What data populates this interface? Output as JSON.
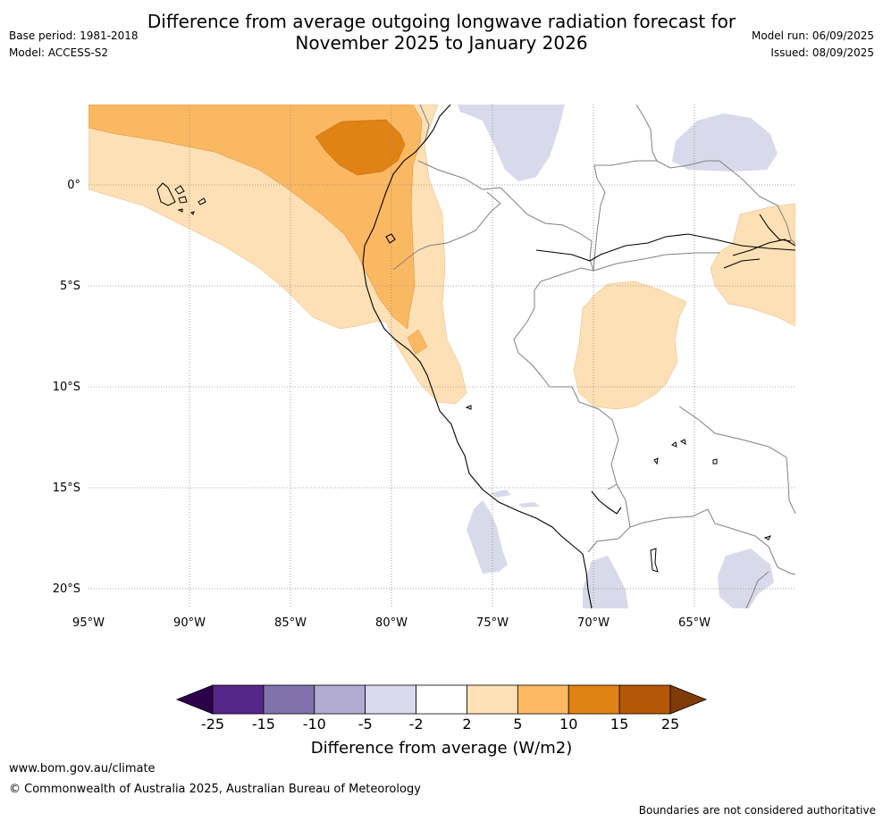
{
  "header": {
    "title_line1": "Difference from average outgoing longwave radiation forecast for",
    "title_line2": "November 2025 to January 2026",
    "base_period": "Base period: 1981-2018",
    "model": "Model: ACCESS-S2",
    "model_run": "Model run: 06/09/2025",
    "issued": "Issued: 08/09/2025"
  },
  "map": {
    "lat_labels": [
      "0°",
      "5°S",
      "10°S",
      "15°S",
      "20°S"
    ],
    "lon_labels": [
      "95°W",
      "90°W",
      "85°W",
      "80°W",
      "75°W",
      "70°W",
      "65°W"
    ],
    "extent": {
      "lon_min": -95,
      "lon_max": -60,
      "lat_min": -21,
      "lat_max": 4
    },
    "colors": {
      "light_orange": "#fde0b5",
      "mid_orange": "#fbb862",
      "dark_orange": "#e08214",
      "light_purple": "#d8daeb",
      "coast": "#000000",
      "border": "#808080"
    }
  },
  "colorbar": {
    "ticks": [
      "-25",
      "-15",
      "-10",
      "-5",
      "-2",
      "2",
      "5",
      "10",
      "15",
      "25"
    ],
    "colors": [
      "#2d004b",
      "#542788",
      "#8073ac",
      "#b2abd2",
      "#d8daeb",
      "#ffffff",
      "#fee0b6",
      "#fdb863",
      "#e08214",
      "#b35806",
      "#7f3b08"
    ],
    "label": "Difference from average (W/m2)"
  },
  "footer": {
    "url": "www.bom.gov.au/climate",
    "copyright": "© Commonwealth of Australia 2025, Australian Bureau of Meteorology",
    "disclaimer": "Boundaries are not considered authoritative"
  }
}
